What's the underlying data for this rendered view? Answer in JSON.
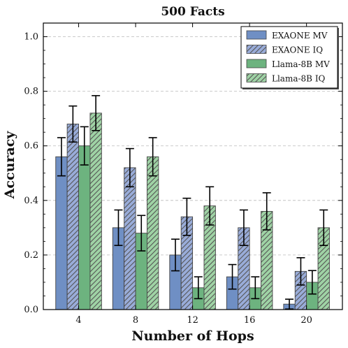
{
  "chart_data": {
    "type": "bar",
    "title": "500 Facts",
    "xlabel": "Number of Hops",
    "ylabel": "Accuracy",
    "categories": [
      "4",
      "8",
      "12",
      "16",
      "20"
    ],
    "ylim": [
      0,
      1.05
    ],
    "yticks": [
      "0.0",
      "0.2",
      "0.4",
      "0.6",
      "0.8",
      "1.0"
    ],
    "grid": true,
    "legend_position": "top-right",
    "series": [
      {
        "name": "EXAONE MV",
        "color": "#6f8fc4",
        "hatched": false,
        "values": [
          0.56,
          0.3,
          0.2,
          0.12,
          0.02
        ],
        "errors": [
          0.07,
          0.065,
          0.058,
          0.045,
          0.018
        ]
      },
      {
        "name": "EXAONE IQ",
        "color": "#99acd9",
        "hatched": true,
        "values": [
          0.68,
          0.52,
          0.34,
          0.3,
          0.14
        ],
        "errors": [
          0.066,
          0.07,
          0.068,
          0.065,
          0.05
        ]
      },
      {
        "name": "Llama-8B MV",
        "color": "#6db37f",
        "hatched": false,
        "values": [
          0.6,
          0.28,
          0.08,
          0.08,
          0.1
        ],
        "errors": [
          0.07,
          0.065,
          0.04,
          0.04,
          0.043
        ]
      },
      {
        "name": "Llama-8B IQ",
        "color": "#9fd3a5",
        "hatched": true,
        "values": [
          0.72,
          0.56,
          0.38,
          0.36,
          0.3
        ],
        "errors": [
          0.064,
          0.07,
          0.07,
          0.068,
          0.065
        ]
      }
    ]
  }
}
